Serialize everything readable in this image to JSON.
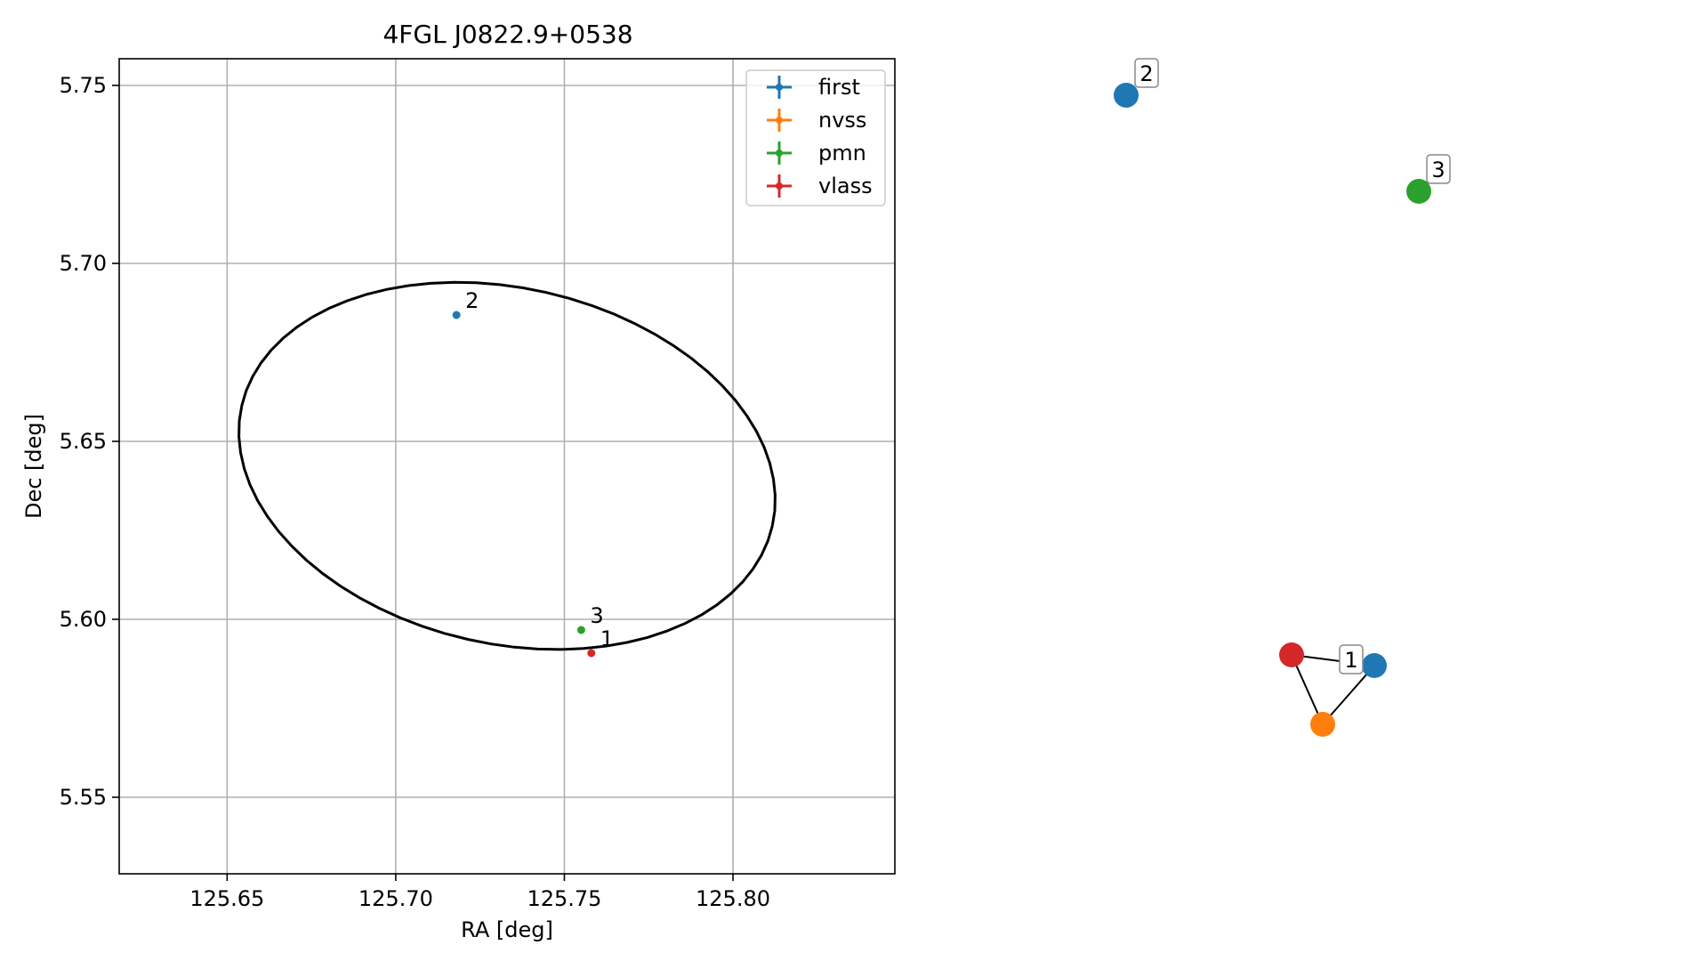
{
  "chart_data": [
    {
      "type": "scatter",
      "title": "4FGL J0822.9+0538",
      "xlabel": "RA [deg]",
      "ylabel": "Dec [deg]",
      "xlim": [
        125.618,
        125.848
      ],
      "ylim": [
        5.5285,
        5.7575
      ],
      "xticks": [
        125.65,
        125.7,
        125.75,
        125.8
      ],
      "xtick_labels": [
        "125.65",
        "125.70",
        "125.75",
        "125.80"
      ],
      "yticks": [
        5.55,
        5.6,
        5.65,
        5.7,
        5.75
      ],
      "ytick_labels": [
        "5.55",
        "5.60",
        "5.65",
        "5.70",
        "5.75"
      ],
      "grid": true,
      "legend": {
        "position": "top-right",
        "entries": [
          {
            "label": "first",
            "color": "#1f77b4"
          },
          {
            "label": "nvss",
            "color": "#ff7f0e"
          },
          {
            "label": "pmn",
            "color": "#2ca02c"
          },
          {
            "label": "vlass",
            "color": "#d62728"
          }
        ]
      },
      "points": [
        {
          "label": "2",
          "catalog": "first",
          "ra": 125.718,
          "dec": 5.6855,
          "color": "#1f77b4"
        },
        {
          "label": "3",
          "catalog": "pmn",
          "ra": 125.755,
          "dec": 5.597,
          "color": "#2ca02c"
        },
        {
          "label": "1",
          "catalog": "vlass",
          "ra": 125.758,
          "dec": 5.5905,
          "color": "#d62728"
        }
      ],
      "ellipse": {
        "color": "#000000",
        "outline_dec_at_ra": [
          {
            "ra": 125.659,
            "dec": 5.654
          },
          {
            "ra": 125.719,
            "dec": 5.7012
          },
          {
            "ra": 125.807,
            "dec": 5.623
          },
          {
            "ra": 125.75,
            "dec": 5.585
          }
        ]
      }
    },
    {
      "type": "network",
      "nodes": [
        {
          "id": "first-2",
          "label": "2",
          "color": "#1f77b4"
        },
        {
          "id": "pmn-3",
          "label": "3",
          "color": "#2ca02c"
        },
        {
          "id": "vlass-1",
          "label": "",
          "color": "#d62728"
        },
        {
          "id": "first-1",
          "label": "",
          "color": "#1f77b4"
        },
        {
          "id": "nvss-1",
          "label": "",
          "color": "#ff7f0e"
        }
      ],
      "edges": [
        [
          "vlass-1",
          "first-1"
        ],
        [
          "vlass-1",
          "nvss-1"
        ],
        [
          "first-1",
          "nvss-1"
        ]
      ],
      "group_labels": [
        "1"
      ]
    }
  ]
}
